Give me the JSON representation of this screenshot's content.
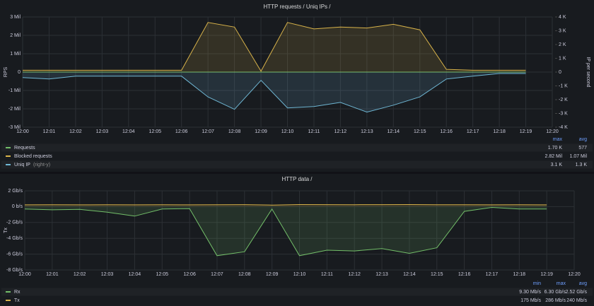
{
  "chart_data": [
    {
      "type": "line",
      "title": "HTTP requests / Uniq IPs /",
      "ylabel": "RPS",
      "y2label": "IP per second",
      "categories": [
        "12:00",
        "12:01",
        "12:02",
        "12:03",
        "12:04",
        "12:05",
        "12:06",
        "12:07",
        "12:08",
        "12:09",
        "12:10",
        "12:11",
        "12:12",
        "12:13",
        "12:14",
        "12:15",
        "12:16",
        "12:17",
        "12:18",
        "12:19",
        "12:20"
      ],
      "ylim": [
        -3000000,
        3000000
      ],
      "yticks": [
        {
          "value": -3000000,
          "label": "-3 Mil"
        },
        {
          "value": -2000000,
          "label": "-2 Mil"
        },
        {
          "value": -1000000,
          "label": "-1 Mil"
        },
        0,
        {
          "value": 1000000,
          "label": "1 Mil"
        },
        {
          "value": 2000000,
          "label": "2 Mil"
        },
        {
          "value": 3000000,
          "label": "3 Mil"
        }
      ],
      "y2lim": [
        -4000,
        4000
      ],
      "y2ticks": [
        {
          "value": -4000,
          "label": "-4 K"
        },
        {
          "value": -3000,
          "label": "-3 K"
        },
        {
          "value": -2000,
          "label": "-2 K"
        },
        {
          "value": -1000,
          "label": "-1 K"
        },
        0,
        {
          "value": 1000,
          "label": "1 K"
        },
        {
          "value": 2000,
          "label": "2 K"
        },
        {
          "value": 3000,
          "label": "3 K"
        },
        {
          "value": 4000,
          "label": "4 K"
        }
      ],
      "grid": true,
      "stat_columns": [
        "max",
        "avg"
      ],
      "series": [
        {
          "name": "Requests",
          "color": "#73bf69",
          "stats": [
            "1.70 K",
            "577"
          ],
          "values": [
            400,
            450,
            420,
            430,
            410,
            420,
            430,
            1700,
            1500,
            300,
            1600,
            1400,
            1450,
            1500,
            1550,
            1400,
            500,
            450,
            430,
            420,
            null
          ]
        },
        {
          "name": "Blocked requests",
          "color": "#d8b34a",
          "stats": [
            "2.82 Mil",
            "1.07 Mil"
          ],
          "values": [
            100000,
            100000,
            100000,
            100000,
            100000,
            100000,
            100000,
            2700000,
            2450000,
            50000,
            2700000,
            2350000,
            2450000,
            2400000,
            2600000,
            2300000,
            150000,
            100000,
            100000,
            100000,
            null
          ]
        },
        {
          "name": "Uniq IP",
          "legend_suffix": "(right-y)",
          "axis": "y2",
          "color": "#6fb7d4",
          "stats": [
            "3.1 K",
            "1.3 K"
          ],
          "values": [
            -400,
            -500,
            -300,
            -300,
            -300,
            -300,
            -300,
            -1800,
            -2700,
            -600,
            -2600,
            -2500,
            -2200,
            -2900,
            -2400,
            -1800,
            -500,
            -300,
            -100,
            -100,
            null
          ]
        }
      ]
    },
    {
      "type": "line",
      "title": "HTTP data /",
      "ylabel": "Tx",
      "categories": [
        "12:00",
        "12:01",
        "12:02",
        "12:03",
        "12:04",
        "12:05",
        "12:06",
        "12:07",
        "12:08",
        "12:09",
        "12:10",
        "12:11",
        "12:12",
        "12:13",
        "12:14",
        "12:15",
        "12:16",
        "12:17",
        "12:18",
        "12:19",
        "12:20"
      ],
      "ylim": [
        -8000000000,
        2000000000
      ],
      "yticks": [
        {
          "value": -8000000000,
          "label": "-8 Gb/s"
        },
        {
          "value": -6000000000,
          "label": "-6 Gb/s"
        },
        {
          "value": -4000000000,
          "label": "-4 Gb/s"
        },
        {
          "value": -2000000000,
          "label": "-2 Gb/s"
        },
        {
          "value": 0,
          "label": "0 b/s"
        },
        {
          "value": 2000000000,
          "label": "2 Gb/s"
        }
      ],
      "grid": true,
      "stat_columns": [
        "min",
        "max",
        "avg"
      ],
      "series": [
        {
          "name": "Rx",
          "color": "#73bf69",
          "stats": [
            "9.30 Mb/s",
            "6.30 Gb/s",
            "2.52 Gb/s"
          ],
          "values": [
            -300000000,
            -400000000,
            -350000000,
            -700000000,
            -1200000000,
            -300000000,
            -250000000,
            -6200000000,
            -5700000000,
            -300000000,
            -6200000000,
            -5500000000,
            -5600000000,
            -5300000000,
            -5900000000,
            -5200000000,
            -600000000,
            -100000000,
            -300000000,
            -300000000,
            null
          ]
        },
        {
          "name": "Tx",
          "color": "#d8b34a",
          "stats": [
            "175 Mb/s",
            "286 Mb/s",
            "240 Mb/s"
          ],
          "values": [
            220000000,
            230000000,
            220000000,
            230000000,
            220000000,
            230000000,
            220000000,
            240000000,
            250000000,
            200000000,
            260000000,
            250000000,
            240000000,
            250000000,
            260000000,
            240000000,
            230000000,
            220000000,
            230000000,
            220000000,
            null
          ]
        }
      ]
    }
  ]
}
